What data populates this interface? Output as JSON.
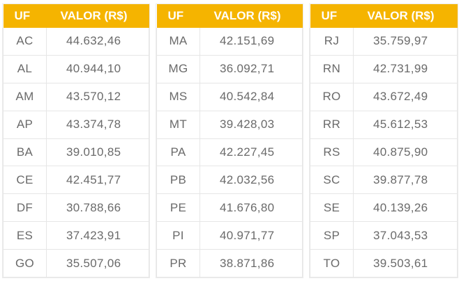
{
  "tables": [
    {
      "header": {
        "uf": "UF",
        "valor": "VALOR (R$)"
      },
      "rows": [
        {
          "uf": "AC",
          "valor": "44.632,46"
        },
        {
          "uf": "AL",
          "valor": "40.944,10"
        },
        {
          "uf": "AM",
          "valor": "43.570,12"
        },
        {
          "uf": "AP",
          "valor": "43.374,78"
        },
        {
          "uf": "BA",
          "valor": "39.010,85"
        },
        {
          "uf": "CE",
          "valor": "42.451,77"
        },
        {
          "uf": "DF",
          "valor": "30.788,66"
        },
        {
          "uf": "ES",
          "valor": "37.423,91"
        },
        {
          "uf": "GO",
          "valor": "35.507,06"
        }
      ]
    },
    {
      "header": {
        "uf": "UF",
        "valor": "VALOR (R$)"
      },
      "rows": [
        {
          "uf": "MA",
          "valor": "42.151,69"
        },
        {
          "uf": "MG",
          "valor": "36.092,71"
        },
        {
          "uf": "MS",
          "valor": "40.542,84"
        },
        {
          "uf": "MT",
          "valor": "39.428,03"
        },
        {
          "uf": "PA",
          "valor": "42.227,45"
        },
        {
          "uf": "PB",
          "valor": "42.032,56"
        },
        {
          "uf": "PE",
          "valor": "41.676,80"
        },
        {
          "uf": "PI",
          "valor": "40.971,77"
        },
        {
          "uf": "PR",
          "valor": "38.871,86"
        }
      ]
    },
    {
      "header": {
        "uf": "UF",
        "valor": "VALOR (R$)"
      },
      "rows": [
        {
          "uf": "RJ",
          "valor": "35.759,97"
        },
        {
          "uf": "RN",
          "valor": "42.731,99"
        },
        {
          "uf": "RO",
          "valor": "43.672,49"
        },
        {
          "uf": "RR",
          "valor": "45.612,53"
        },
        {
          "uf": "RS",
          "valor": "40.875,90"
        },
        {
          "uf": "SC",
          "valor": "39.877,78"
        },
        {
          "uf": "SE",
          "valor": "40.139,26"
        },
        {
          "uf": "SP",
          "valor": "37.043,53"
        },
        {
          "uf": "TO",
          "valor": "39.503,61"
        }
      ]
    }
  ],
  "colors": {
    "header_background": "#f5b400",
    "header_text": "#ffffff",
    "cell_text": "#6a6a6a",
    "border": "#e6e6e6"
  }
}
